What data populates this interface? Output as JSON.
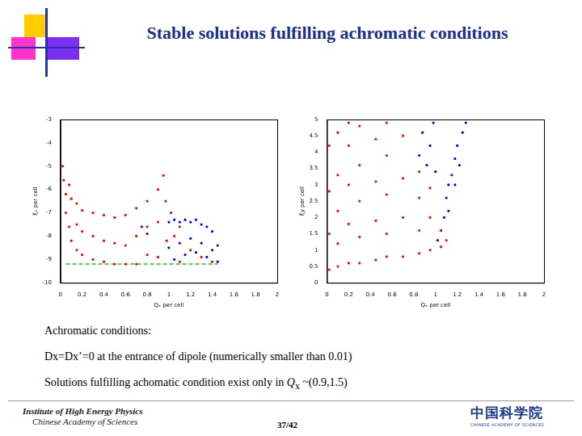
{
  "title": "Stable solutions fulfilling achromatic conditions",
  "chart_data": [
    {
      "type": "scatter",
      "x_label": "Qₓ per cell",
      "y_label": "ξₓ per cell",
      "xlim": [
        0,
        2
      ],
      "xticks": [
        0,
        0.2,
        0.4,
        0.6,
        0.8,
        1,
        1.2,
        1.4,
        1.6,
        1.8,
        2
      ],
      "ylim": [
        -10,
        -3
      ],
      "yticks": [
        -10,
        -9,
        -8,
        -7,
        -6,
        -5,
        -4,
        -3
      ],
      "grid": false,
      "series": [
        {
          "color": "#ff0000",
          "marker": "dot",
          "values": [
            [
              0.02,
              -5.0
            ],
            [
              0.03,
              -5.6
            ],
            [
              0.05,
              -6.2
            ],
            [
              0.05,
              -7.0
            ],
            [
              0.08,
              -5.8
            ],
            [
              0.08,
              -7.6
            ],
            [
              0.1,
              -6.4
            ],
            [
              0.1,
              -8.2
            ],
            [
              0.15,
              -6.6
            ],
            [
              0.15,
              -7.5
            ],
            [
              0.15,
              -8.6
            ],
            [
              0.2,
              -6.9
            ],
            [
              0.2,
              -7.8
            ],
            [
              0.2,
              -8.8
            ],
            [
              0.3,
              -7.0
            ],
            [
              0.3,
              -8.0
            ],
            [
              0.3,
              -9.0
            ],
            [
              0.4,
              -7.1
            ],
            [
              0.4,
              -8.2
            ],
            [
              0.4,
              -9.1
            ],
            [
              0.5,
              -7.2
            ],
            [
              0.5,
              -8.3
            ],
            [
              0.5,
              -9.2
            ],
            [
              0.6,
              -7.1
            ],
            [
              0.6,
              -8.4
            ],
            [
              0.6,
              -9.2
            ],
            [
              0.7,
              -6.8
            ],
            [
              0.7,
              -8.0
            ],
            [
              0.7,
              -9.2
            ],
            [
              0.8,
              -6.5
            ],
            [
              0.8,
              -7.6
            ],
            [
              0.8,
              -8.8
            ],
            [
              0.9,
              -6.0
            ],
            [
              0.9,
              -7.4
            ],
            [
              0.9,
              -8.9
            ],
            [
              0.95,
              -5.4
            ],
            [
              0.97,
              -6.5
            ],
            [
              0.98,
              -8.2
            ],
            [
              1.02,
              -7.0
            ],
            [
              1.05,
              -8.0
            ],
            [
              1.1,
              -7.6
            ],
            [
              1.1,
              -9.1
            ],
            [
              1.2,
              -8.6
            ],
            [
              1.3,
              -8.9
            ],
            [
              1.4,
              -9.1
            ]
          ]
        },
        {
          "color": "#0000ff",
          "marker": "dot",
          "values": [
            [
              0.75,
              -7.6
            ],
            [
              0.8,
              -7.9
            ],
            [
              1.0,
              -7.4
            ],
            [
              1.0,
              -8.5
            ],
            [
              1.05,
              -7.3
            ],
            [
              1.05,
              -9.0
            ],
            [
              1.1,
              -7.4
            ],
            [
              1.1,
              -8.3
            ],
            [
              1.15,
              -7.3
            ],
            [
              1.15,
              -8.8
            ],
            [
              1.2,
              -7.4
            ],
            [
              1.2,
              -8.1
            ],
            [
              1.25,
              -7.3
            ],
            [
              1.25,
              -8.7
            ],
            [
              1.3,
              -7.5
            ],
            [
              1.3,
              -8.3
            ],
            [
              1.35,
              -7.6
            ],
            [
              1.35,
              -8.9
            ],
            [
              1.4,
              -7.8
            ],
            [
              1.4,
              -8.6
            ],
            [
              1.45,
              -8.4
            ],
            [
              1.45,
              -9.1
            ]
          ]
        },
        {
          "type": "line",
          "color": "#22bb22",
          "line_style": "dashed",
          "values": [
            [
              0.05,
              -9.2
            ],
            [
              1.45,
              -9.2
            ]
          ]
        }
      ]
    },
    {
      "type": "scatter",
      "x_label": "Qₓ per cell",
      "y_label": "ξy per cell",
      "xlim": [
        0,
        2
      ],
      "xticks": [
        0,
        0.2,
        0.4,
        0.6,
        0.8,
        1,
        1.2,
        1.4,
        1.6,
        1.8,
        2
      ],
      "ylim": [
        0,
        5
      ],
      "yticks": [
        0,
        0.5,
        1,
        1.5,
        2,
        2.5,
        3,
        3.5,
        4,
        4.5,
        5
      ],
      "grid": false,
      "series": [
        {
          "color": "#ff0000",
          "marker": "dot",
          "values": [
            [
              0.02,
              0.4
            ],
            [
              0.02,
              1.5
            ],
            [
              0.02,
              2.8
            ],
            [
              0.02,
              4.2
            ],
            [
              0.1,
              0.5
            ],
            [
              0.1,
              1.2
            ],
            [
              0.1,
              2.2
            ],
            [
              0.1,
              3.3
            ],
            [
              0.1,
              4.6
            ],
            [
              0.2,
              0.6
            ],
            [
              0.2,
              1.8
            ],
            [
              0.2,
              3.0
            ],
            [
              0.2,
              4.2
            ],
            [
              0.2,
              4.9
            ],
            [
              0.3,
              0.6
            ],
            [
              0.3,
              1.4
            ],
            [
              0.3,
              2.5
            ],
            [
              0.3,
              3.6
            ],
            [
              0.3,
              4.8
            ],
            [
              0.45,
              0.7
            ],
            [
              0.45,
              1.9
            ],
            [
              0.45,
              3.1
            ],
            [
              0.45,
              4.4
            ],
            [
              0.55,
              0.8
            ],
            [
              0.55,
              1.5
            ],
            [
              0.55,
              2.7
            ],
            [
              0.55,
              3.9
            ],
            [
              0.55,
              4.9
            ],
            [
              0.7,
              0.8
            ],
            [
              0.7,
              2.0
            ],
            [
              0.7,
              3.2
            ],
            [
              0.7,
              4.5
            ],
            [
              0.85,
              0.9
            ],
            [
              0.85,
              1.6
            ],
            [
              0.85,
              2.6
            ],
            [
              0.85,
              3.4
            ],
            [
              0.95,
              1.0
            ],
            [
              0.95,
              2.0
            ],
            [
              0.95,
              2.9
            ],
            [
              1.05,
              1.1
            ],
            [
              1.05,
              1.6
            ],
            [
              1.1,
              1.3
            ]
          ]
        },
        {
          "color": "#0000ff",
          "marker": "dot",
          "values": [
            [
              0.85,
              3.9
            ],
            [
              0.88,
              4.6
            ],
            [
              0.92,
              3.6
            ],
            [
              0.95,
              4.2
            ],
            [
              0.98,
              4.9
            ],
            [
              1.0,
              3.4
            ],
            [
              1.02,
              1.3
            ],
            [
              1.05,
              1.6
            ],
            [
              1.08,
              2.0
            ],
            [
              1.1,
              2.6
            ],
            [
              1.12,
              3.0
            ],
            [
              1.15,
              3.3
            ],
            [
              1.18,
              3.8
            ],
            [
              1.2,
              4.2
            ],
            [
              1.25,
              4.6
            ],
            [
              1.28,
              4.9
            ],
            [
              1.12,
              2.2
            ],
            [
              1.18,
              3.0
            ],
            [
              1.22,
              3.6
            ]
          ]
        }
      ]
    }
  ],
  "notes": {
    "line1": "Achromatic conditions:",
    "line2": "Dx=Dx’=0 at the entrance of dipole (numerically smaller than 0.01)",
    "line3": {
      "before": "Solutions fulfilling achomatic condition exist only in ",
      "symbol": "Q",
      "subscript": "x",
      "after": " ~(0.9,1.5)"
    }
  },
  "footer": {
    "institute": [
      "Institute of High Energy Physics",
      "Chinese Academy of Sciences"
    ],
    "page": "37/42",
    "logo_cn": "中国科学院",
    "logo_en": "CHINESE ACADEMY OF SCIENCES"
  }
}
